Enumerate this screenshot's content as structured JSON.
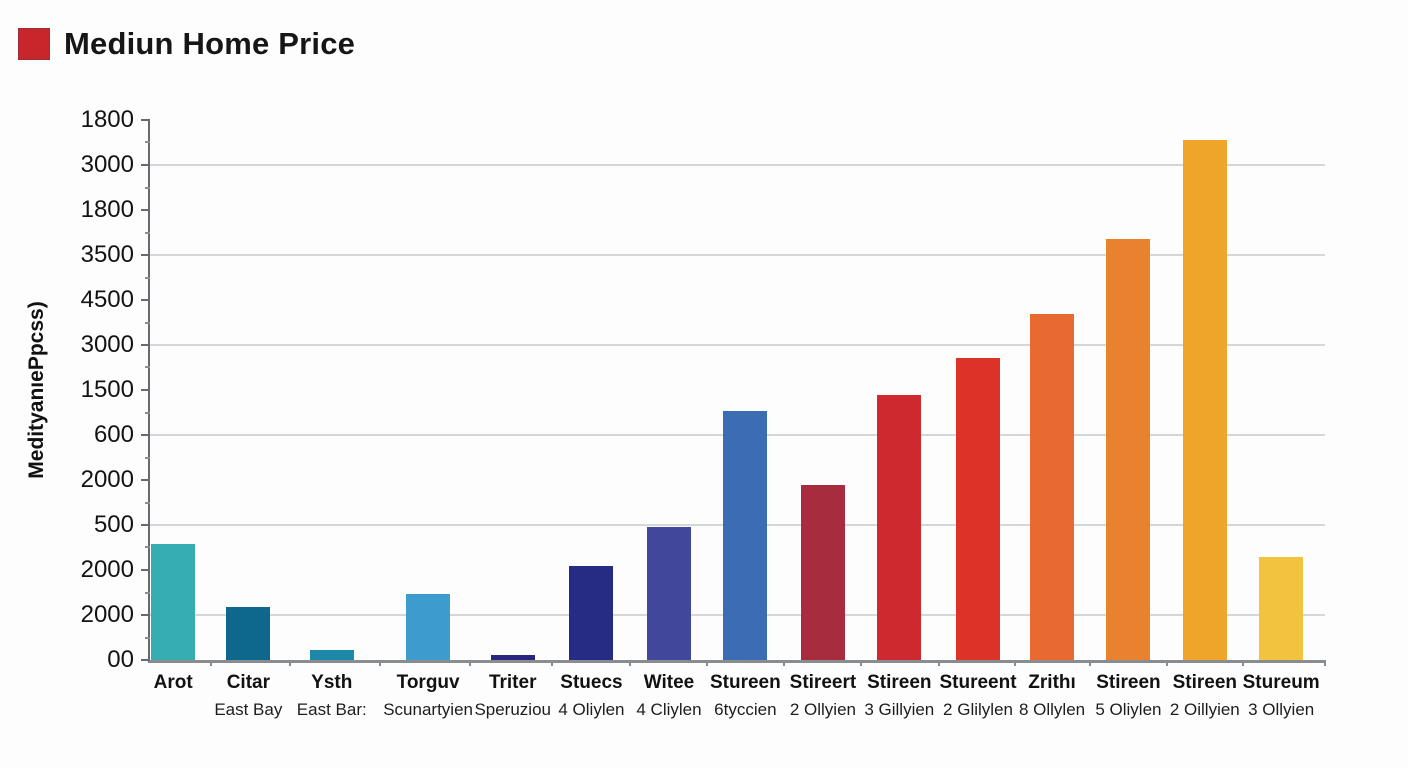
{
  "header": {
    "legend_swatch_color": "#C9262C",
    "title": "Mediun Home Price"
  },
  "chart_data": {
    "type": "bar",
    "title": "Mediun Home Price",
    "ylabel": "MedityanıePpcss)",
    "grid": "horizontal only, on alternating ticks",
    "legend_position": "top-left",
    "y_ticks_top_to_bottom": [
      "1800",
      "3000",
      "1800",
      "3500",
      "4500",
      "3000",
      "1500",
      "600",
      "2000",
      "500",
      "2000",
      "2000",
      "00"
    ],
    "gridline_tick_indices": [
      1,
      3,
      5,
      7,
      9,
      11
    ],
    "categories": [
      "Arot",
      "Citar",
      "Ysth",
      "Torguv",
      "Triter",
      "Stuecs",
      "Witee",
      "Stureen",
      "Stireert",
      "Stireen",
      "Stureent",
      "Zrithı",
      "Stireen",
      "Stireen",
      "Stureum"
    ],
    "sublabels": [
      "",
      "East Bay",
      "East Bar:",
      "Scunartyien",
      "Speruziou",
      "4 Oliylen",
      "4 Cliylen",
      "6tyccien",
      "2 Ollyien",
      "3 Gillyien",
      "2 Glilylen",
      "8 Ollylen",
      "5 Oliylen",
      "2 Oillyien",
      "3 Ollyien"
    ],
    "series": [
      {
        "name": "Mediun Home Price",
        "values_pct_of_axis_height": [
          21.5,
          9.8,
          1.8,
          12.2,
          0.9,
          17.5,
          24.7,
          46.2,
          32.4,
          49.0,
          56.0,
          64.1,
          77.9,
          96.3,
          19.0
        ]
      }
    ],
    "bar_colors": [
      "#35ADB1",
      "#0E688E",
      "#1E88A8",
      "#3D9BCE",
      "#2A2680",
      "#262C84",
      "#41479B",
      "#3C6CB4",
      "#A72C3E",
      "#CE292E",
      "#DD3227",
      "#E96A30",
      "#E8822F",
      "#EFA42A",
      "#F2C33E"
    ],
    "bar_left_pct": [
      0.1,
      6.5,
      13.6,
      21.8,
      29.0,
      35.7,
      42.3,
      48.8,
      55.4,
      61.9,
      68.6,
      74.9,
      81.4,
      87.9,
      94.4
    ],
    "bar_width_pct": 3.74,
    "axis_colors": {
      "y_axis": "#66696d",
      "x_axis": "#8a8d90",
      "gridline": "#d4d6d8"
    }
  }
}
